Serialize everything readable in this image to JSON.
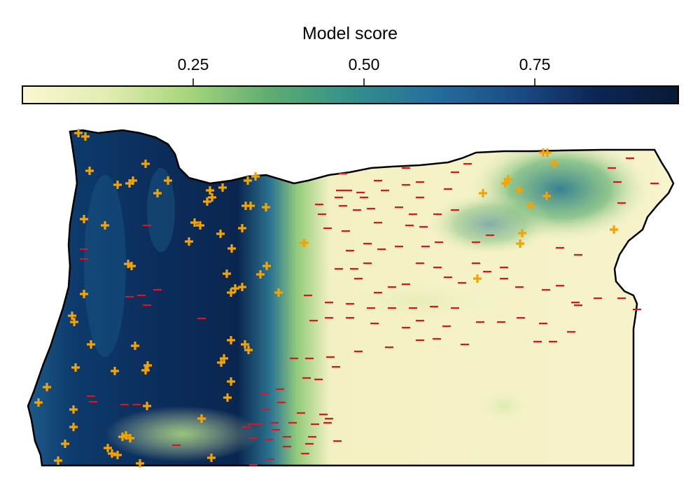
{
  "legend": {
    "title": "Model score",
    "ticks": [
      0.25,
      0.5,
      0.75
    ],
    "tick_labels": [
      "0.25",
      "0.50",
      "0.75"
    ],
    "range": [
      0.0,
      0.96
    ],
    "colormap": [
      "#fbf6d3",
      "#e3edb2",
      "#a9d67c",
      "#5fad72",
      "#35908a",
      "#256f9c",
      "#1c4d87",
      "#0c2555",
      "#081a33"
    ]
  },
  "map": {
    "region": "Oregon",
    "outline_color": "#000000",
    "presence_marker": {
      "symbol": "+",
      "color": "#f5a300"
    },
    "absence_marker": {
      "symbol": "-",
      "color": "#e0141a"
    }
  }
}
